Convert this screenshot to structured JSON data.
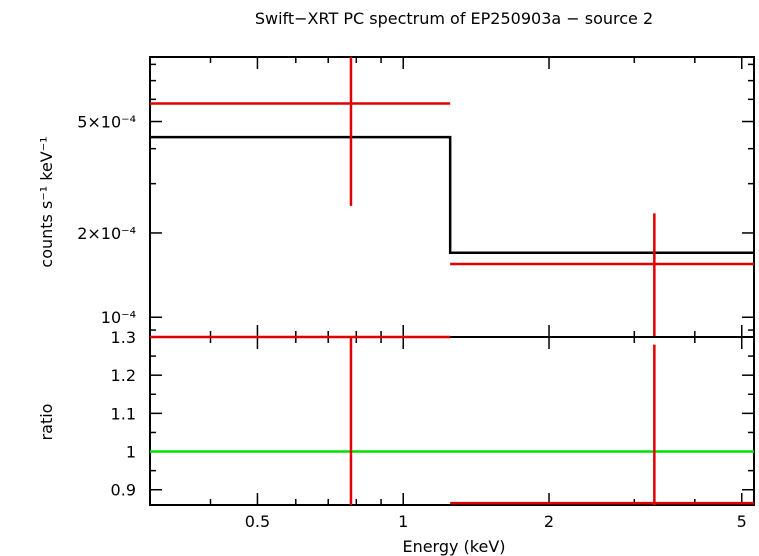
{
  "chart_data": {
    "type": "line",
    "title": "Swift−XRT PC spectrum of EP250903a − source 2",
    "xlabel": "Energy (keV)",
    "x_scale": "log",
    "xlim": [
      0.3,
      5.3
    ],
    "x_ticks": [
      {
        "value": 0.5,
        "label": "0.5"
      },
      {
        "value": 1,
        "label": "1"
      },
      {
        "value": 2,
        "label": "2"
      },
      {
        "value": 5,
        "label": "5"
      }
    ],
    "panels": [
      {
        "name": "spectrum",
        "ylabel": "counts s⁻¹ keV⁻¹",
        "y_scale": "log",
        "ylim": [
          8.5e-05,
          0.00085
        ],
        "y_ticks": [
          {
            "value": 0.0001,
            "label": "10⁻⁴"
          },
          {
            "value": 0.0002,
            "label": "2×10⁻⁴"
          },
          {
            "value": 0.0005,
            "label": "5×10⁻⁴"
          }
        ],
        "data": {
          "name": "data",
          "color": "#e00000",
          "points": [
            {
              "x": 0.78,
              "xlo": 0.3,
              "xhi": 1.25,
              "y": 0.00058,
              "ylo": 0.00025,
              "yhi": 0.00085
            },
            {
              "x": 3.3,
              "xlo": 1.25,
              "xhi": 5.3,
              "y": 0.000155,
              "ylo": 8.5e-05,
              "yhi": 0.000235
            }
          ]
        },
        "model": {
          "name": "model",
          "color": "#000000",
          "steps": [
            {
              "xlo": 0.3,
              "xhi": 1.25,
              "y": 0.00044
            },
            {
              "xlo": 1.25,
              "xhi": 5.3,
              "y": 0.00017
            }
          ]
        }
      },
      {
        "name": "ratio",
        "ylabel": "ratio",
        "y_scale": "linear",
        "ylim": [
          0.86,
          1.3
        ],
        "y_ticks": [
          {
            "value": 0.9,
            "label": "0.9"
          },
          {
            "value": 1,
            "label": "1"
          },
          {
            "value": 1.1,
            "label": "1.1"
          },
          {
            "value": 1.2,
            "label": "1.2"
          },
          {
            "value": 1.3,
            "label": "1.3"
          }
        ],
        "data": {
          "name": "ratio-data",
          "color": "#e00000",
          "points": [
            {
              "x": 0.78,
              "xlo": 0.3,
              "xhi": 1.25,
              "y": 1.3,
              "ylo": 0.86,
              "yhi": 1.3
            },
            {
              "x": 3.3,
              "xlo": 1.25,
              "xhi": 5.3,
              "y": 0.865,
              "ylo": 0.86,
              "yhi": 1.28
            }
          ]
        },
        "reference": {
          "name": "unity-line",
          "y": 1,
          "color": "#00e000"
        }
      }
    ]
  }
}
